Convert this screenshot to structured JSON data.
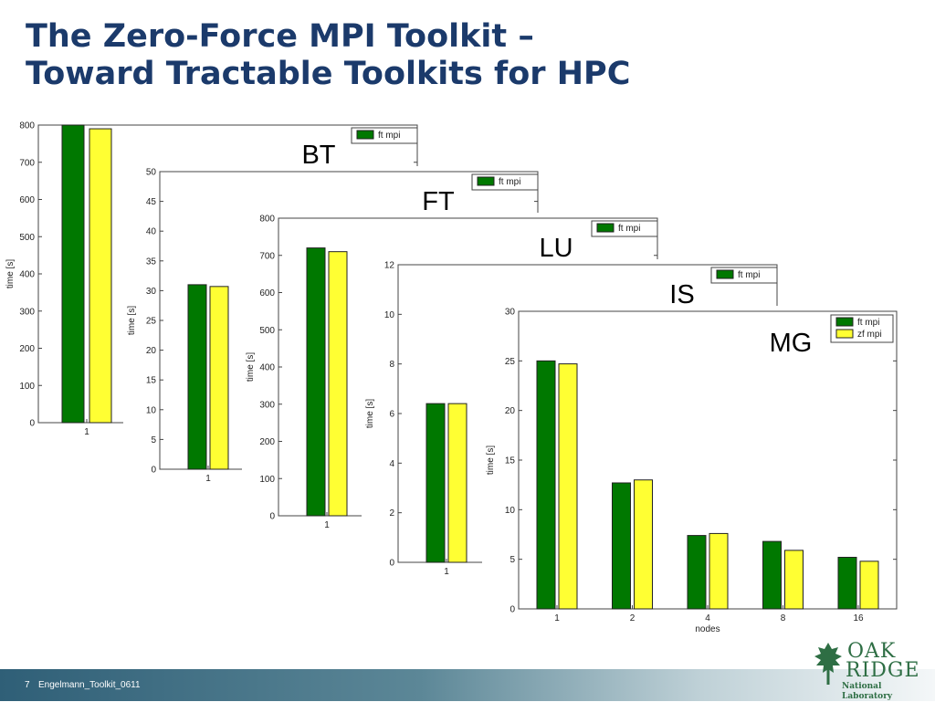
{
  "slide": {
    "title_line1": "The Zero-Force MPI Toolkit –",
    "title_line2": "Toward Tractable Toolkits for HPC",
    "page_number": "7",
    "doc_id": "Engelmann_Toolkit_0611",
    "logo": {
      "line1": "OAK",
      "line2": "RIDGE",
      "line3": "National Laboratory"
    }
  },
  "colors": {
    "ft": "#007800",
    "zf": "#ffff33",
    "title": "#1b3a6b"
  },
  "chart_data": [
    {
      "type": "bar",
      "benchmark": "BT",
      "categories": [
        "1"
      ],
      "series": [
        {
          "name": "ft mpi",
          "values": [
            800
          ]
        },
        {
          "name": "zf mpi",
          "values": [
            790
          ]
        }
      ],
      "ylim": [
        0,
        800
      ],
      "yticks": [
        0,
        100,
        200,
        300,
        400,
        500,
        600,
        700,
        800
      ],
      "ylabel": "time [s]",
      "xlabel": "",
      "legend": [
        "ft mpi"
      ],
      "legend_position": "top-right"
    },
    {
      "type": "bar",
      "benchmark": "FT",
      "categories": [
        "1"
      ],
      "series": [
        {
          "name": "ft mpi",
          "values": [
            31
          ]
        },
        {
          "name": "zf mpi",
          "values": [
            30.7
          ]
        }
      ],
      "ylim": [
        0,
        50
      ],
      "yticks": [
        0,
        5,
        10,
        15,
        20,
        25,
        30,
        35,
        40,
        45,
        50
      ],
      "ylabel": "time [s]",
      "xlabel": "",
      "legend": [
        "ft mpi"
      ],
      "legend_position": "top-right"
    },
    {
      "type": "bar",
      "benchmark": "LU",
      "categories": [
        "1"
      ],
      "series": [
        {
          "name": "ft mpi",
          "values": [
            720
          ]
        },
        {
          "name": "zf mpi",
          "values": [
            710
          ]
        }
      ],
      "ylim": [
        0,
        800
      ],
      "yticks": [
        0,
        100,
        200,
        300,
        400,
        500,
        600,
        700,
        800
      ],
      "ylabel": "time [s]",
      "xlabel": "",
      "legend": [
        "ft mpi"
      ],
      "legend_position": "top-right"
    },
    {
      "type": "bar",
      "benchmark": "IS",
      "categories": [
        "1"
      ],
      "series": [
        {
          "name": "ft mpi",
          "values": [
            6.4
          ]
        },
        {
          "name": "zf mpi",
          "values": [
            6.4
          ]
        }
      ],
      "ylim": [
        0,
        12
      ],
      "yticks": [
        0,
        2,
        4,
        6,
        8,
        10,
        12
      ],
      "ylabel": "time [s]",
      "xlabel": "",
      "legend": [
        "ft mpi"
      ],
      "legend_position": "top-right"
    },
    {
      "type": "bar",
      "benchmark": "MG",
      "categories": [
        "1",
        "2",
        "4",
        "8",
        "16"
      ],
      "series": [
        {
          "name": "ft mpi",
          "values": [
            25,
            12.7,
            7.4,
            6.8,
            5.2
          ]
        },
        {
          "name": "zf mpi",
          "values": [
            24.7,
            13,
            7.6,
            5.9,
            4.8
          ]
        }
      ],
      "ylim": [
        0,
        30
      ],
      "yticks": [
        0,
        5,
        10,
        15,
        20,
        25,
        30
      ],
      "ylabel": "time [s]",
      "xlabel": "nodes",
      "legend": [
        "ft mpi",
        "zf mpi"
      ],
      "legend_position": "top-right"
    }
  ]
}
